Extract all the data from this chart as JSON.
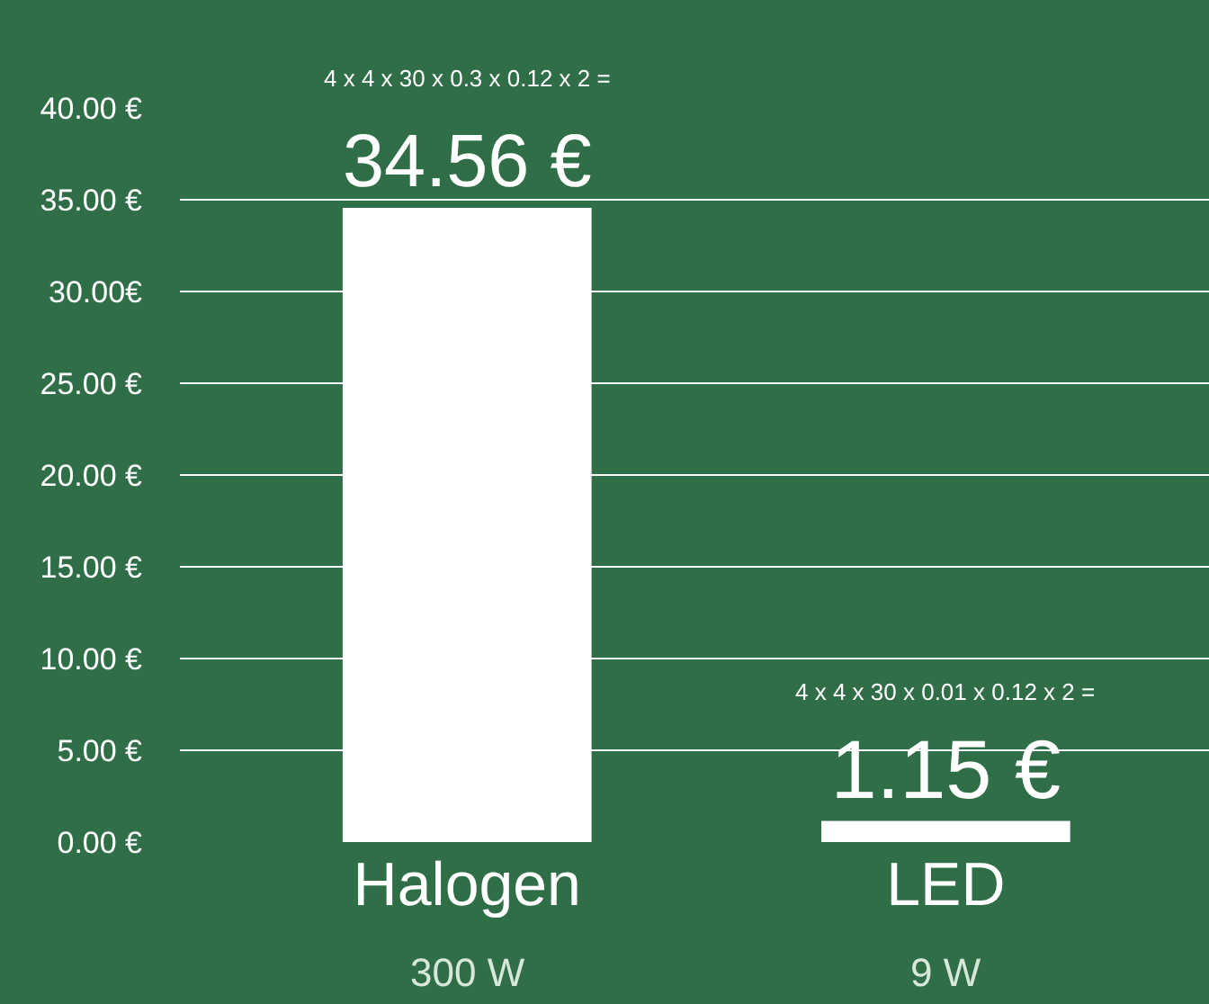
{
  "chart_data": {
    "type": "bar",
    "categories": [
      "Halogen",
      "LED"
    ],
    "values": [
      34.56,
      1.15
    ],
    "color": "#ffffff",
    "value_labels": [
      "34.56 €",
      "1.15 €"
    ],
    "ylim": [
      0,
      40
    ],
    "yticks": [
      {
        "value": 0,
        "label": "0.00 €"
      },
      {
        "value": 5,
        "label": "5.00 €"
      },
      {
        "value": 10,
        "label": "10.00 €"
      },
      {
        "value": 15,
        "label": "15.00 €"
      },
      {
        "value": 20,
        "label": "20.00 €"
      },
      {
        "value": 25,
        "label": "25.00 €"
      },
      {
        "value": 30,
        "label": "30.00€"
      },
      {
        "value": 35,
        "label": "35.00 €"
      },
      {
        "value": 40,
        "label": "40.00 €"
      }
    ],
    "grid": "y",
    "annotations": [
      "4 x 4 x 30 x 0.3 x 0.12 x 2 =",
      "4 x 4 x 30 x 0.01 x 0.12 x 2 =",
      "300 W",
      "9 W"
    ]
  }
}
